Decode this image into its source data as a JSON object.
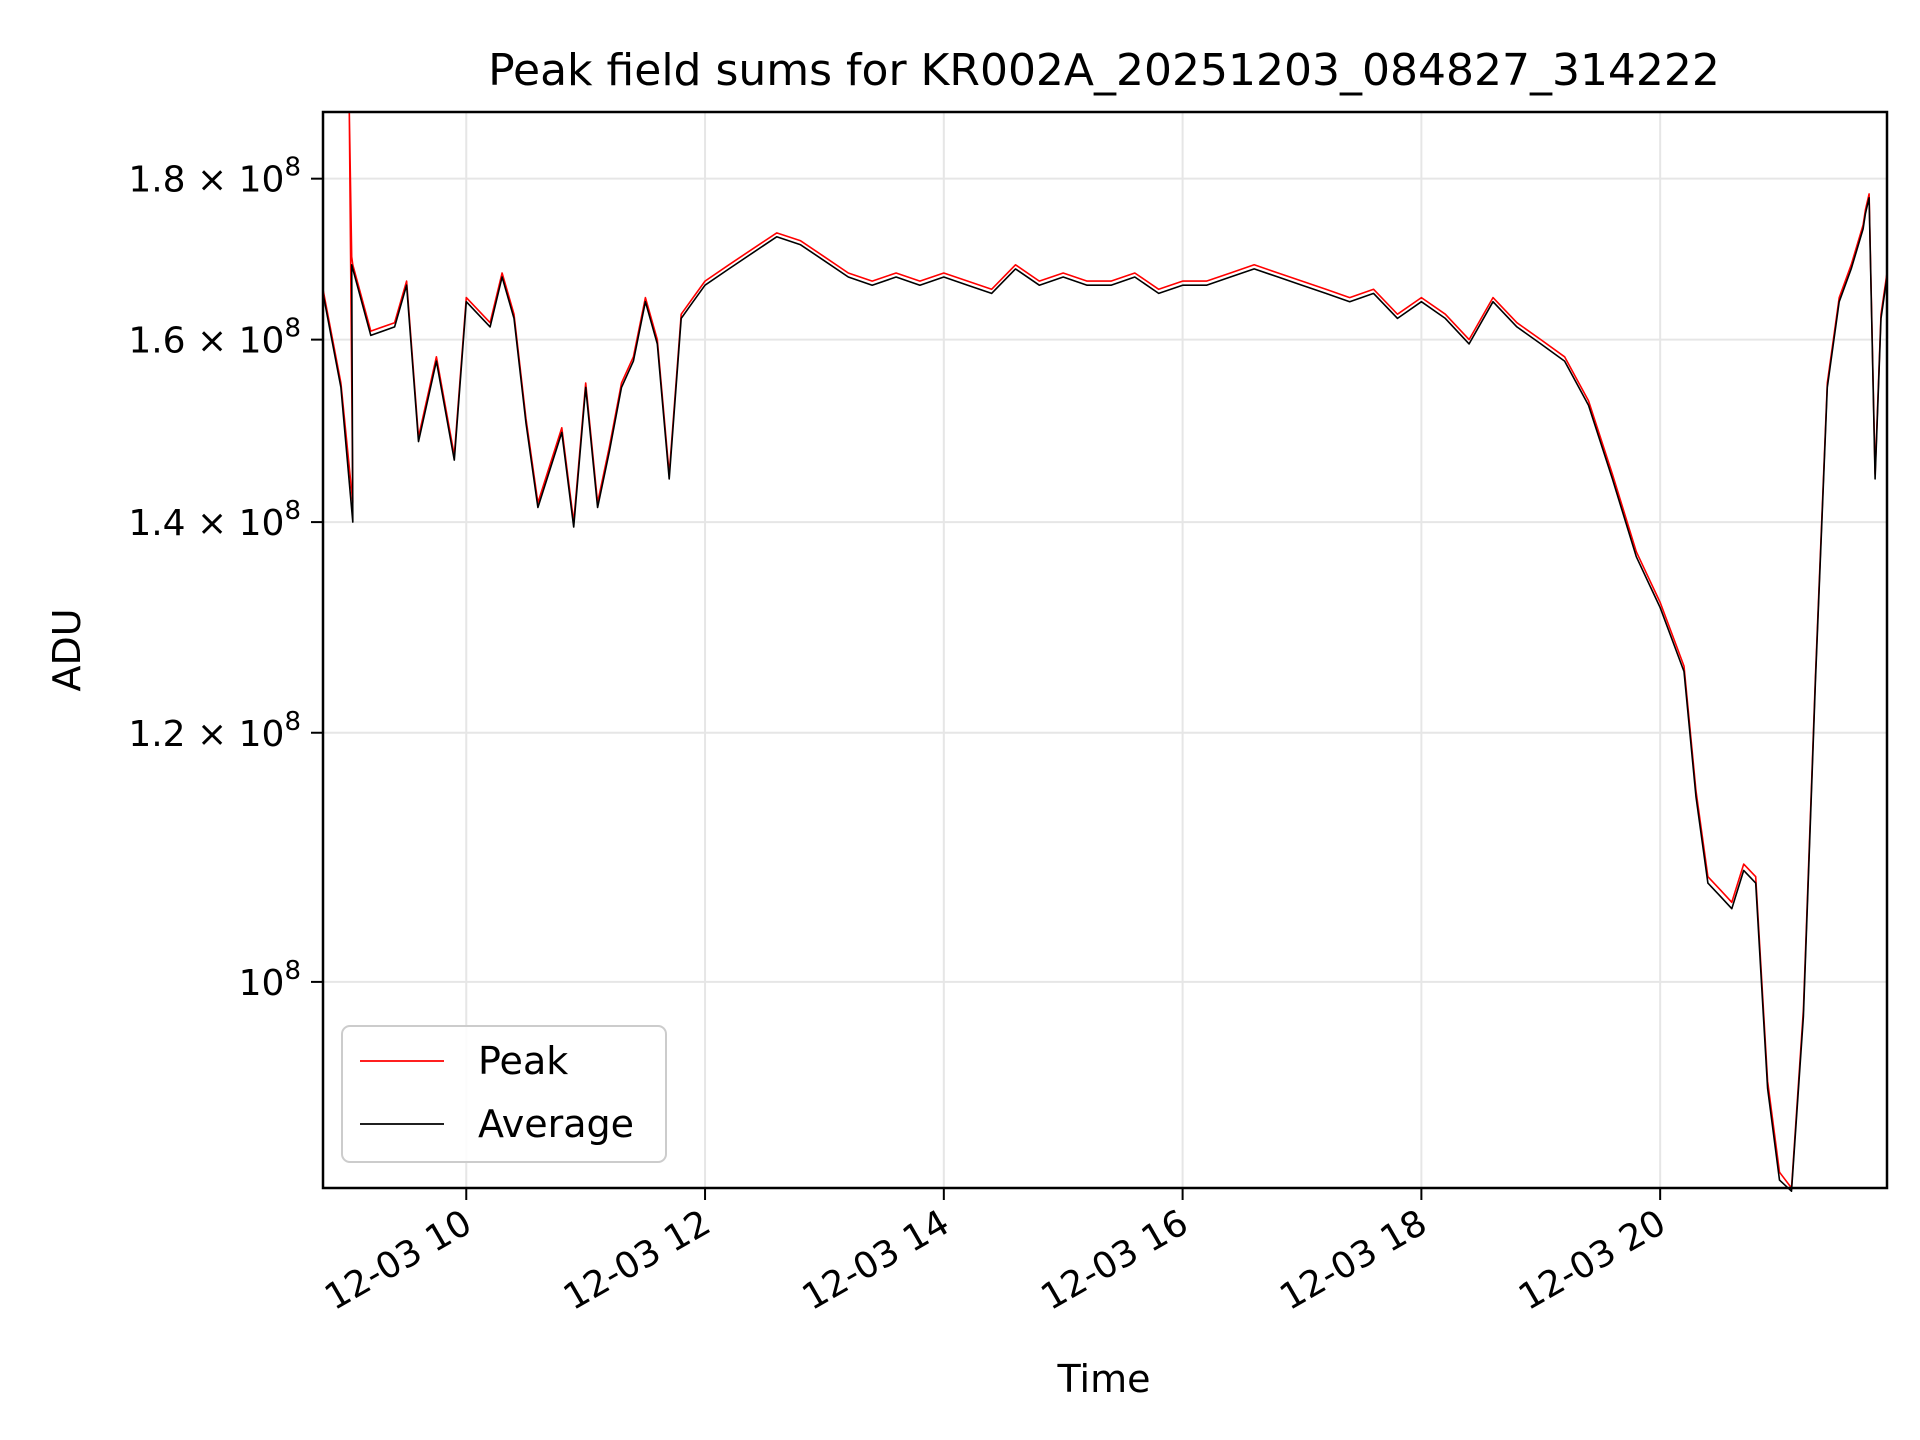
{
  "chart_data": {
    "type": "line",
    "title": "Peak field sums for KR002A_20251203_084827_314222",
    "xlabel": "Time",
    "ylabel": "ADU",
    "y_scale": "log",
    "xlim": [
      8.8,
      21.9
    ],
    "ylim": [
      86000000,
      189000000
    ],
    "x_ticks": [
      {
        "value": 10,
        "label": "12-03 10"
      },
      {
        "value": 12,
        "label": "12-03 12"
      },
      {
        "value": 14,
        "label": "12-03 14"
      },
      {
        "value": 16,
        "label": "12-03 16"
      },
      {
        "value": 18,
        "label": "12-03 18"
      },
      {
        "value": 20,
        "label": "12-03 20"
      }
    ],
    "y_ticks": [
      {
        "value": 100000000,
        "mant": "10",
        "exp": "8"
      },
      {
        "value": 120000000,
        "mant": "1.2 × 10",
        "exp": "8"
      },
      {
        "value": 140000000,
        "mant": "1.4 × 10",
        "exp": "8"
      },
      {
        "value": 160000000,
        "mant": "1.6 × 10",
        "exp": "8"
      },
      {
        "value": 180000000,
        "mant": "1.8 × 10",
        "exp": "8"
      }
    ],
    "grid": true,
    "legend_position": "lower-left",
    "colors": {
      "peak": "#ff0000",
      "average": "#000000"
    },
    "series": [
      {
        "name": "Peak",
        "color": "#ff0000",
        "x": [
          8.8,
          8.95,
          9.05,
          9.02,
          9.04,
          9.05,
          9.2,
          9.4,
          9.5,
          9.6,
          9.75,
          9.9,
          10.0,
          10.2,
          10.3,
          10.4,
          10.5,
          10.6,
          10.8,
          10.9,
          11.0,
          11.1,
          11.2,
          11.3,
          11.4,
          11.5,
          11.6,
          11.7,
          11.8,
          11.9,
          12.0,
          12.2,
          12.4,
          12.6,
          12.8,
          13.0,
          13.2,
          13.4,
          13.6,
          13.8,
          14.0,
          14.2,
          14.4,
          14.6,
          14.8,
          15.0,
          15.2,
          15.4,
          15.6,
          15.8,
          16.0,
          16.2,
          16.4,
          16.6,
          16.8,
          17.0,
          17.2,
          17.4,
          17.6,
          17.8,
          18.0,
          18.2,
          18.4,
          18.6,
          18.8,
          19.0,
          19.2,
          19.4,
          19.6,
          19.8,
          20.0,
          20.2,
          20.3,
          20.4,
          20.5,
          20.6,
          20.7,
          20.8,
          20.9,
          21.0,
          21.1,
          21.2,
          21.3,
          21.4,
          21.5,
          21.6,
          21.7,
          21.72,
          21.75,
          21.8,
          21.85,
          21.9
        ],
        "values": [
          166000000,
          155000000,
          142000000,
          189000000,
          170000000,
          169000000,
          161000000,
          162000000,
          167000000,
          149000000,
          158000000,
          147000000,
          165000000,
          162000000,
          168000000,
          163000000,
          151000000,
          142000000,
          150000000,
          140000000,
          155000000,
          142000000,
          148000000,
          155000000,
          158000000,
          165000000,
          160000000,
          145000000,
          163000000,
          165000000,
          167000000,
          169000000,
          171000000,
          173000000,
          172000000,
          170000000,
          168000000,
          167000000,
          168000000,
          167000000,
          168000000,
          167000000,
          166000000,
          169000000,
          167000000,
          168000000,
          167000000,
          167000000,
          168000000,
          166000000,
          167000000,
          167000000,
          168000000,
          169000000,
          168000000,
          167000000,
          166000000,
          165000000,
          166000000,
          163000000,
          165000000,
          163000000,
          160000000,
          165000000,
          162000000,
          160000000,
          158000000,
          153000000,
          145000000,
          137000000,
          132000000,
          126000000,
          115000000,
          108000000,
          107000000,
          106000000,
          109000000,
          108000000,
          93000000,
          87000000,
          86000000,
          98000000,
          125000000,
          155000000,
          165000000,
          169000000,
          174000000,
          176000000,
          178000000,
          145000000,
          163000000,
          168000000
        ]
      },
      {
        "name": "Average",
        "color": "#000000",
        "x": [
          8.8,
          8.95,
          9.05,
          9.04,
          9.05,
          9.2,
          9.4,
          9.5,
          9.6,
          9.75,
          9.9,
          10.0,
          10.2,
          10.3,
          10.4,
          10.5,
          10.6,
          10.8,
          10.9,
          11.0,
          11.1,
          11.2,
          11.3,
          11.4,
          11.5,
          11.6,
          11.7,
          11.8,
          11.9,
          12.0,
          12.2,
          12.4,
          12.6,
          12.8,
          13.0,
          13.2,
          13.4,
          13.6,
          13.8,
          14.0,
          14.2,
          14.4,
          14.6,
          14.8,
          15.0,
          15.2,
          15.4,
          15.6,
          15.8,
          16.0,
          16.2,
          16.4,
          16.6,
          16.8,
          17.0,
          17.2,
          17.4,
          17.6,
          17.8,
          18.0,
          18.2,
          18.4,
          18.6,
          18.8,
          19.0,
          19.2,
          19.4,
          19.6,
          19.8,
          20.0,
          20.2,
          20.3,
          20.4,
          20.5,
          20.6,
          20.7,
          20.8,
          20.9,
          21.0,
          21.1,
          21.2,
          21.3,
          21.4,
          21.5,
          21.6,
          21.7,
          21.72,
          21.75,
          21.8,
          21.85,
          21.9
        ],
        "values": [
          165500000,
          154500000,
          140000000,
          169000000,
          168500000,
          160500000,
          161500000,
          166500000,
          148500000,
          157500000,
          146500000,
          164500000,
          161500000,
          167500000,
          162500000,
          150500000,
          141500000,
          149500000,
          139500000,
          154500000,
          141500000,
          147500000,
          154500000,
          157500000,
          164500000,
          159500000,
          144500000,
          162500000,
          164500000,
          166500000,
          168500000,
          170500000,
          172500000,
          171500000,
          169500000,
          167500000,
          166500000,
          167500000,
          166500000,
          167500000,
          166500000,
          165500000,
          168500000,
          166500000,
          167500000,
          166500000,
          166500000,
          167500000,
          165500000,
          166500000,
          166500000,
          167500000,
          168500000,
          167500000,
          166500000,
          165500000,
          164500000,
          165500000,
          162500000,
          164500000,
          162500000,
          159500000,
          164500000,
          161500000,
          159500000,
          157500000,
          152500000,
          144500000,
          136500000,
          131500000,
          125500000,
          114500000,
          107500000,
          106500000,
          105500000,
          108500000,
          107500000,
          92500000,
          86500000,
          85800000,
          97500000,
          124500000,
          154500000,
          164500000,
          168500000,
          173500000,
          175500000,
          177500000,
          144500000,
          162500000,
          167500000
        ]
      }
    ]
  }
}
